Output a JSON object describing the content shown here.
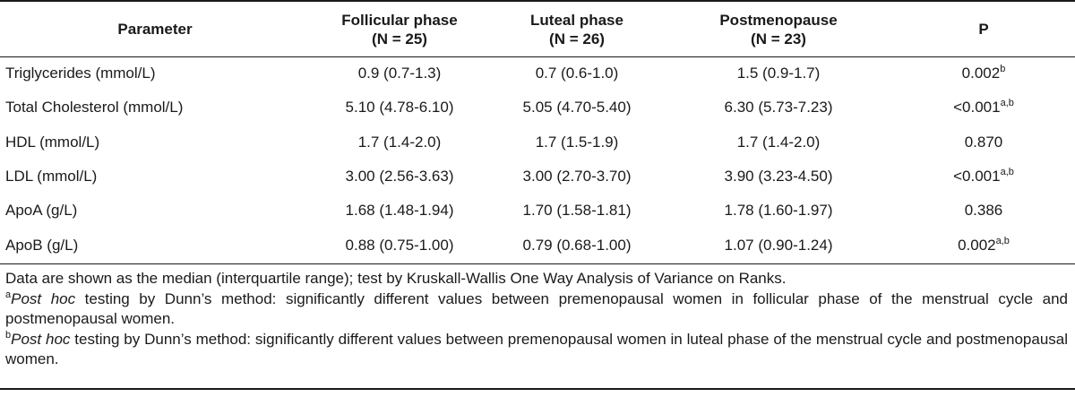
{
  "table": {
    "headers": {
      "parameter": "Parameter",
      "follicular": "Follicular phase",
      "follicular_n": "(N = 25)",
      "luteal": "Luteal phase",
      "luteal_n": "(N = 26)",
      "postmenopause": "Postmenopause",
      "postmenopause_n": "(N = 23)",
      "p": "P"
    },
    "rows": [
      {
        "parameter": "Triglycerides (mmol/L)",
        "follicular": "0.9 (0.7-1.3)",
        "luteal": "0.7 (0.6-1.0)",
        "postmenopause": "1.5 (0.9-1.7)",
        "p": "0.002",
        "p_sup": "b"
      },
      {
        "parameter": "Total Cholesterol (mmol/L)",
        "follicular": "5.10 (4.78-6.10)",
        "luteal": "5.05 (4.70-5.40)",
        "postmenopause": "6.30 (5.73-7.23)",
        "p": "<0.001",
        "p_sup": "a,b"
      },
      {
        "parameter": "HDL (mmol/L)",
        "follicular": "1.7 (1.4-2.0)",
        "luteal": "1.7 (1.5-1.9)",
        "postmenopause": "1.7 (1.4-2.0)",
        "p": "0.870",
        "p_sup": ""
      },
      {
        "parameter": "LDL (mmol/L)",
        "follicular": "3.00 (2.56-3.63)",
        "luteal": "3.00 (2.70-3.70)",
        "postmenopause": "3.90 (3.23-4.50)",
        "p": "<0.001",
        "p_sup": "a,b"
      },
      {
        "parameter": "ApoA (g/L)",
        "follicular": "1.68 (1.48-1.94)",
        "luteal": "1.70 (1.58-1.81)",
        "postmenopause": "1.78 (1.60-1.97)",
        "p": "0.386",
        "p_sup": ""
      },
      {
        "parameter": "ApoB (g/L)",
        "follicular": "0.88 (0.75-1.00)",
        "luteal": "0.79 (0.68-1.00)",
        "postmenopause": "1.07 (0.90-1.24)",
        "p": "0.002",
        "p_sup": "a,b"
      }
    ]
  },
  "notes": {
    "general": "Data are shown as the median (interquartile range); test by Kruskall-Wallis One Way Analysis of Variance on Ranks.",
    "a_mark": "a",
    "a_italic": "Post hoc",
    "a_text": " testing by Dunn’s method: significantly different values between premenopausal women in follicular phase of the menstrual cycle and postmenopausal women.",
    "b_mark": "b",
    "b_italic": "Post hoc",
    "b_text": " testing by Dunn’s method: significantly different values between premenopausal women in luteal phase of the menstrual cycle and postmenopausal women."
  }
}
